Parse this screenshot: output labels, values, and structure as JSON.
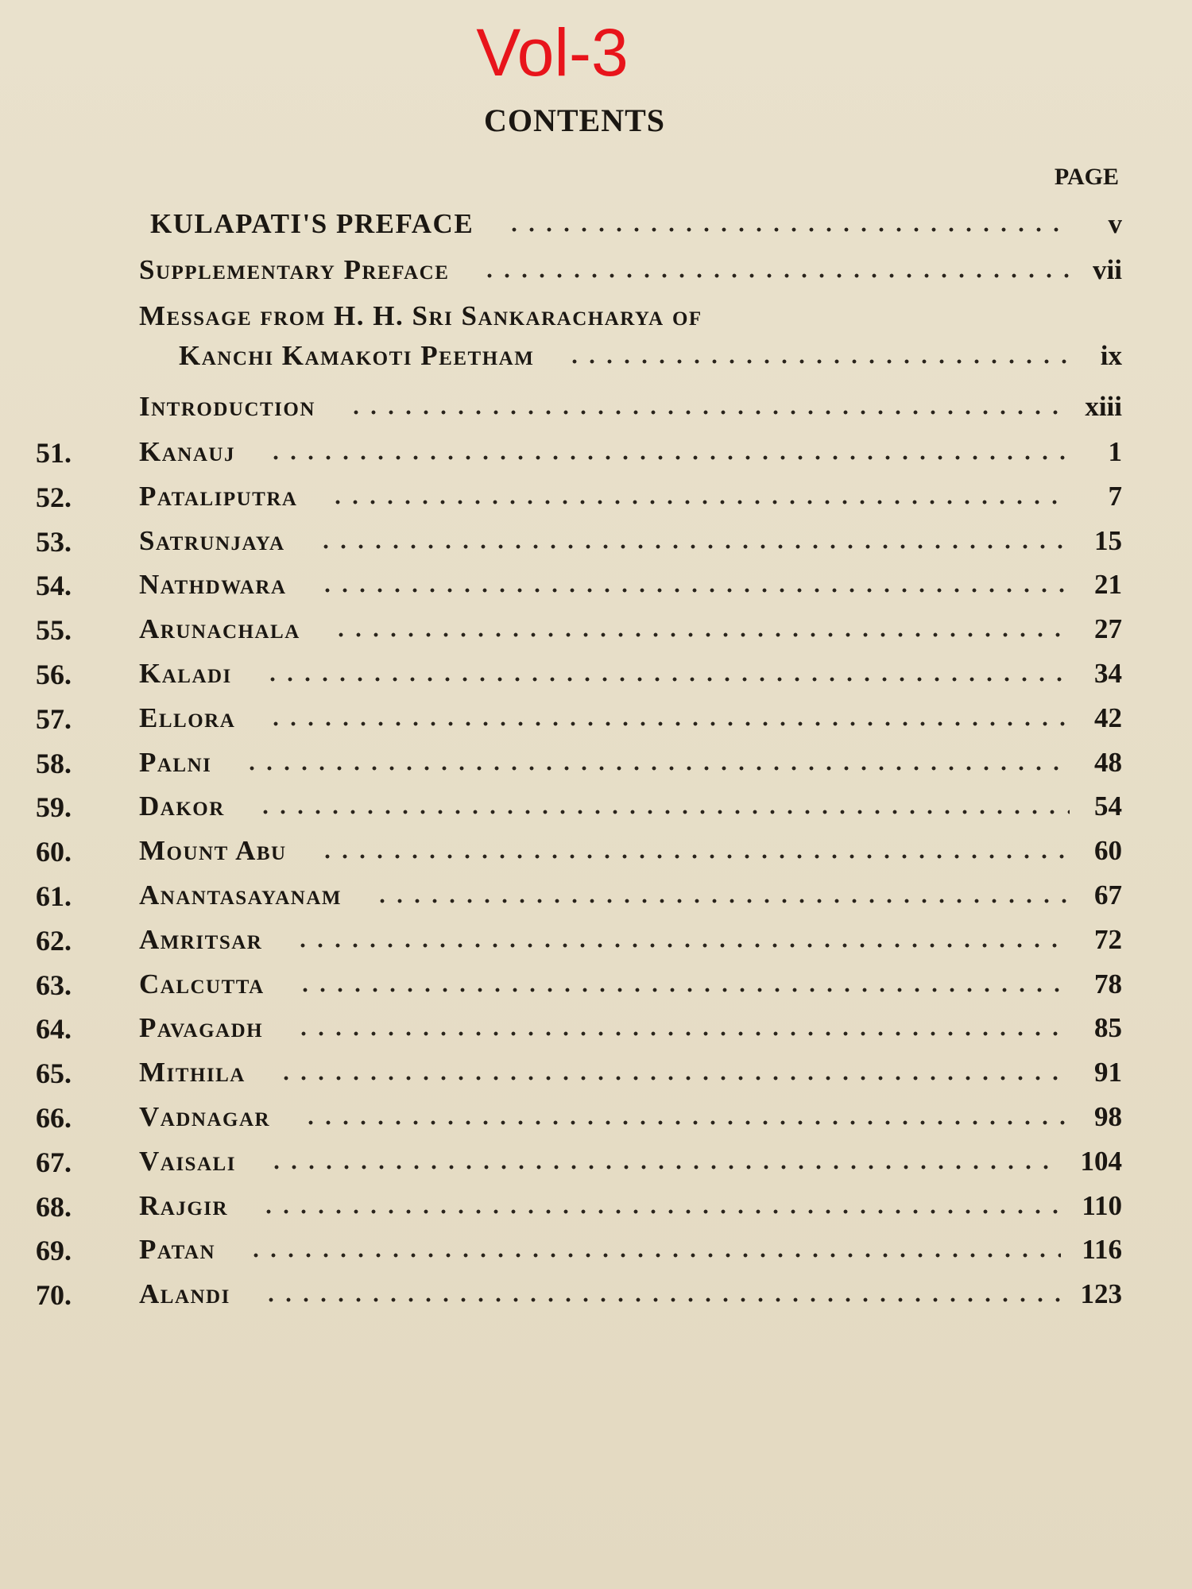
{
  "header": {
    "volume": "Vol-3",
    "title": "CONTENTS",
    "page_heading": "PAGE"
  },
  "entries": [
    {
      "title": "KULAPATI'S PREFACE",
      "page": "v"
    },
    {
      "title": "Supplementary Preface",
      "page": "vii"
    },
    {
      "lines": [
        "Message from H. H. Sri Sankaracharya of",
        "Kanchi Kamakoti Peetham"
      ],
      "page": "ix"
    },
    {
      "title": "Introduction",
      "page": "xiii"
    },
    {
      "number": "51.",
      "title": "Kanauj",
      "page": "1"
    },
    {
      "number": "52.",
      "title": "Pataliputra",
      "page": "7"
    },
    {
      "number": "53.",
      "title": "Satrunjaya",
      "page": "15"
    },
    {
      "number": "54.",
      "title": "Nathdwara",
      "page": "21"
    },
    {
      "number": "55.",
      "title": "Arunachala",
      "page": "27"
    },
    {
      "number": "56.",
      "title": "Kaladi",
      "page": "34"
    },
    {
      "number": "57.",
      "title": "Ellora",
      "page": "42"
    },
    {
      "number": "58.",
      "title": "Palni",
      "page": "48"
    },
    {
      "number": "59.",
      "title": "Dakor",
      "page": "54"
    },
    {
      "number": "60.",
      "title": "Mount Abu",
      "page": "60"
    },
    {
      "number": "61.",
      "title": "Anantasayanam",
      "page": "67"
    },
    {
      "number": "62.",
      "title": "Amritsar",
      "page": "72"
    },
    {
      "number": "63.",
      "title": "Calcutta",
      "page": "78"
    },
    {
      "number": "64.",
      "title": "Pavagadh",
      "page": "85"
    },
    {
      "number": "65.",
      "title": "Mithila",
      "page": "91"
    },
    {
      "number": "66.",
      "title": "Vadnagar",
      "page": "98"
    },
    {
      "number": "67.",
      "title": "Vaisali",
      "page": "104"
    },
    {
      "number": "68.",
      "title": "Rajgir",
      "page": "110"
    },
    {
      "number": "69.",
      "title": "Patan",
      "page": "116"
    },
    {
      "number": "70.",
      "title": "Alandi",
      "page": "123"
    }
  ]
}
